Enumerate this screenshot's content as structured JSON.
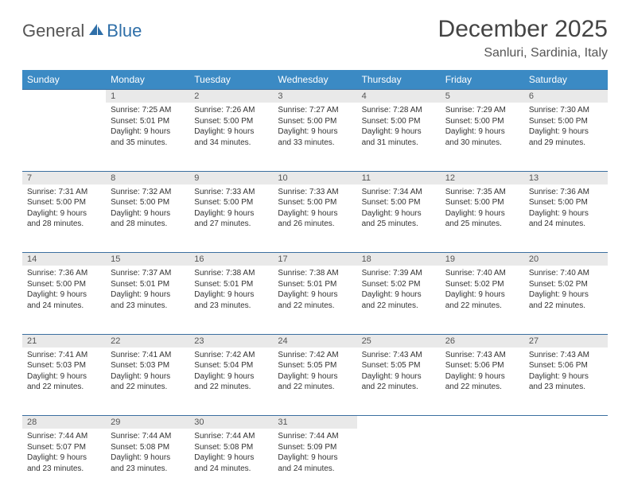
{
  "logo": {
    "general": "General",
    "blue": "Blue"
  },
  "title": "December 2025",
  "location": "Sanluri, Sardinia, Italy",
  "colors": {
    "header_bg": "#3b8ac4",
    "header_fg": "#ffffff",
    "daynum_bg": "#e9e9e9",
    "border": "#3b6fa0",
    "logo_blue": "#2f6fa8"
  },
  "day_headers": [
    "Sunday",
    "Monday",
    "Tuesday",
    "Wednesday",
    "Thursday",
    "Friday",
    "Saturday"
  ],
  "weeks": [
    {
      "nums": [
        "",
        "1",
        "2",
        "3",
        "4",
        "5",
        "6"
      ],
      "cells": [
        null,
        {
          "sunrise": "Sunrise: 7:25 AM",
          "sunset": "Sunset: 5:01 PM",
          "day1": "Daylight: 9 hours",
          "day2": "and 35 minutes."
        },
        {
          "sunrise": "Sunrise: 7:26 AM",
          "sunset": "Sunset: 5:00 PM",
          "day1": "Daylight: 9 hours",
          "day2": "and 34 minutes."
        },
        {
          "sunrise": "Sunrise: 7:27 AM",
          "sunset": "Sunset: 5:00 PM",
          "day1": "Daylight: 9 hours",
          "day2": "and 33 minutes."
        },
        {
          "sunrise": "Sunrise: 7:28 AM",
          "sunset": "Sunset: 5:00 PM",
          "day1": "Daylight: 9 hours",
          "day2": "and 31 minutes."
        },
        {
          "sunrise": "Sunrise: 7:29 AM",
          "sunset": "Sunset: 5:00 PM",
          "day1": "Daylight: 9 hours",
          "day2": "and 30 minutes."
        },
        {
          "sunrise": "Sunrise: 7:30 AM",
          "sunset": "Sunset: 5:00 PM",
          "day1": "Daylight: 9 hours",
          "day2": "and 29 minutes."
        }
      ]
    },
    {
      "nums": [
        "7",
        "8",
        "9",
        "10",
        "11",
        "12",
        "13"
      ],
      "cells": [
        {
          "sunrise": "Sunrise: 7:31 AM",
          "sunset": "Sunset: 5:00 PM",
          "day1": "Daylight: 9 hours",
          "day2": "and 28 minutes."
        },
        {
          "sunrise": "Sunrise: 7:32 AM",
          "sunset": "Sunset: 5:00 PM",
          "day1": "Daylight: 9 hours",
          "day2": "and 28 minutes."
        },
        {
          "sunrise": "Sunrise: 7:33 AM",
          "sunset": "Sunset: 5:00 PM",
          "day1": "Daylight: 9 hours",
          "day2": "and 27 minutes."
        },
        {
          "sunrise": "Sunrise: 7:33 AM",
          "sunset": "Sunset: 5:00 PM",
          "day1": "Daylight: 9 hours",
          "day2": "and 26 minutes."
        },
        {
          "sunrise": "Sunrise: 7:34 AM",
          "sunset": "Sunset: 5:00 PM",
          "day1": "Daylight: 9 hours",
          "day2": "and 25 minutes."
        },
        {
          "sunrise": "Sunrise: 7:35 AM",
          "sunset": "Sunset: 5:00 PM",
          "day1": "Daylight: 9 hours",
          "day2": "and 25 minutes."
        },
        {
          "sunrise": "Sunrise: 7:36 AM",
          "sunset": "Sunset: 5:00 PM",
          "day1": "Daylight: 9 hours",
          "day2": "and 24 minutes."
        }
      ]
    },
    {
      "nums": [
        "14",
        "15",
        "16",
        "17",
        "18",
        "19",
        "20"
      ],
      "cells": [
        {
          "sunrise": "Sunrise: 7:36 AM",
          "sunset": "Sunset: 5:00 PM",
          "day1": "Daylight: 9 hours",
          "day2": "and 24 minutes."
        },
        {
          "sunrise": "Sunrise: 7:37 AM",
          "sunset": "Sunset: 5:01 PM",
          "day1": "Daylight: 9 hours",
          "day2": "and 23 minutes."
        },
        {
          "sunrise": "Sunrise: 7:38 AM",
          "sunset": "Sunset: 5:01 PM",
          "day1": "Daylight: 9 hours",
          "day2": "and 23 minutes."
        },
        {
          "sunrise": "Sunrise: 7:38 AM",
          "sunset": "Sunset: 5:01 PM",
          "day1": "Daylight: 9 hours",
          "day2": "and 22 minutes."
        },
        {
          "sunrise": "Sunrise: 7:39 AM",
          "sunset": "Sunset: 5:02 PM",
          "day1": "Daylight: 9 hours",
          "day2": "and 22 minutes."
        },
        {
          "sunrise": "Sunrise: 7:40 AM",
          "sunset": "Sunset: 5:02 PM",
          "day1": "Daylight: 9 hours",
          "day2": "and 22 minutes."
        },
        {
          "sunrise": "Sunrise: 7:40 AM",
          "sunset": "Sunset: 5:02 PM",
          "day1": "Daylight: 9 hours",
          "day2": "and 22 minutes."
        }
      ]
    },
    {
      "nums": [
        "21",
        "22",
        "23",
        "24",
        "25",
        "26",
        "27"
      ],
      "cells": [
        {
          "sunrise": "Sunrise: 7:41 AM",
          "sunset": "Sunset: 5:03 PM",
          "day1": "Daylight: 9 hours",
          "day2": "and 22 minutes."
        },
        {
          "sunrise": "Sunrise: 7:41 AM",
          "sunset": "Sunset: 5:03 PM",
          "day1": "Daylight: 9 hours",
          "day2": "and 22 minutes."
        },
        {
          "sunrise": "Sunrise: 7:42 AM",
          "sunset": "Sunset: 5:04 PM",
          "day1": "Daylight: 9 hours",
          "day2": "and 22 minutes."
        },
        {
          "sunrise": "Sunrise: 7:42 AM",
          "sunset": "Sunset: 5:05 PM",
          "day1": "Daylight: 9 hours",
          "day2": "and 22 minutes."
        },
        {
          "sunrise": "Sunrise: 7:43 AM",
          "sunset": "Sunset: 5:05 PM",
          "day1": "Daylight: 9 hours",
          "day2": "and 22 minutes."
        },
        {
          "sunrise": "Sunrise: 7:43 AM",
          "sunset": "Sunset: 5:06 PM",
          "day1": "Daylight: 9 hours",
          "day2": "and 22 minutes."
        },
        {
          "sunrise": "Sunrise: 7:43 AM",
          "sunset": "Sunset: 5:06 PM",
          "day1": "Daylight: 9 hours",
          "day2": "and 23 minutes."
        }
      ]
    },
    {
      "nums": [
        "28",
        "29",
        "30",
        "31",
        "",
        "",
        ""
      ],
      "cells": [
        {
          "sunrise": "Sunrise: 7:44 AM",
          "sunset": "Sunset: 5:07 PM",
          "day1": "Daylight: 9 hours",
          "day2": "and 23 minutes."
        },
        {
          "sunrise": "Sunrise: 7:44 AM",
          "sunset": "Sunset: 5:08 PM",
          "day1": "Daylight: 9 hours",
          "day2": "and 23 minutes."
        },
        {
          "sunrise": "Sunrise: 7:44 AM",
          "sunset": "Sunset: 5:08 PM",
          "day1": "Daylight: 9 hours",
          "day2": "and 24 minutes."
        },
        {
          "sunrise": "Sunrise: 7:44 AM",
          "sunset": "Sunset: 5:09 PM",
          "day1": "Daylight: 9 hours",
          "day2": "and 24 minutes."
        },
        null,
        null,
        null
      ]
    }
  ]
}
